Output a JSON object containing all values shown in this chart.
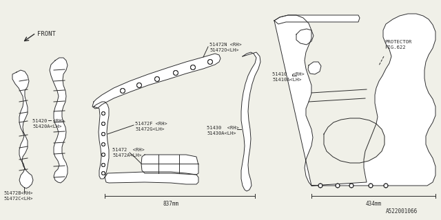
{
  "bg_color": "#f0f0e8",
  "line_color": "#2a2a2a",
  "lw": 0.7,
  "part_id": "A522001066",
  "labels": {
    "front": "FRONT",
    "51472N": "51472N <RH>\n51472O<LH>",
    "51472F": "51472F <RH>\n51472G<LH>",
    "51472": "51472  <RH>\n51472A<LH>",
    "51420": "51420  <RH>\n51420A<LH>",
    "51472B": "51472B<RH>\n51472C<LH>",
    "51410": "51410  <RH>\n51410A<LH>",
    "51430": "51430  <RH>\n51430A<LH>",
    "protector": "PROTECTOR\nFIG.622",
    "dim1": "837mm",
    "dim2": "434mm"
  }
}
